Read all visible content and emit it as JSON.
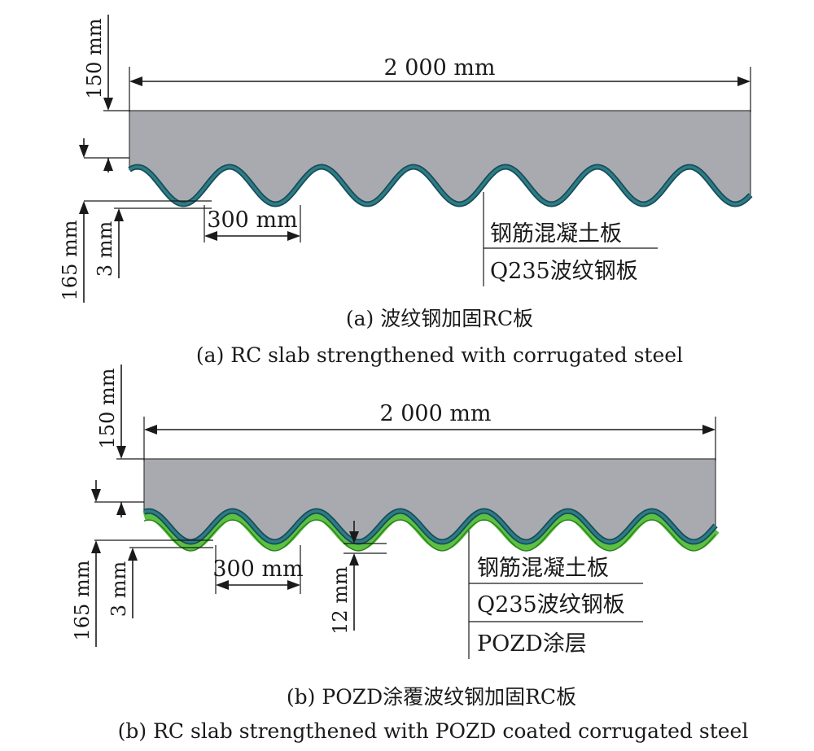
{
  "panel_a": {
    "width_label": "2 000 mm",
    "dim_150": "150 mm",
    "dim_165": "165 mm",
    "dim_3": "3 mm",
    "dim_300": "300 mm",
    "legend": [
      "钢筋混凝土板",
      "Q235波纹钢板"
    ],
    "caption_cn": "(a) 波纹钢加固RC板",
    "caption_en": "(a) RC slab strengthened with corrugated steel"
  },
  "panel_b": {
    "width_label": "2 000 mm",
    "dim_150": "150 mm",
    "dim_165": "165 mm",
    "dim_3": "3 mm",
    "dim_300": "300 mm",
    "dim_12": "12 mm",
    "legend": [
      "钢筋混凝土板",
      "Q235波纹钢板",
      "POZD涂层"
    ],
    "caption_cn": "(b) POZD涂覆波纹钢加固RC板",
    "caption_en": "(b) RC slab strengthened with POZD coated corrugated steel"
  },
  "colors": {
    "concrete": "#a9aab0",
    "steel": "#2f7b86",
    "steel_dark": "#154e57",
    "coating": "#5cc043",
    "coating_dark": "#2a7d1e"
  }
}
